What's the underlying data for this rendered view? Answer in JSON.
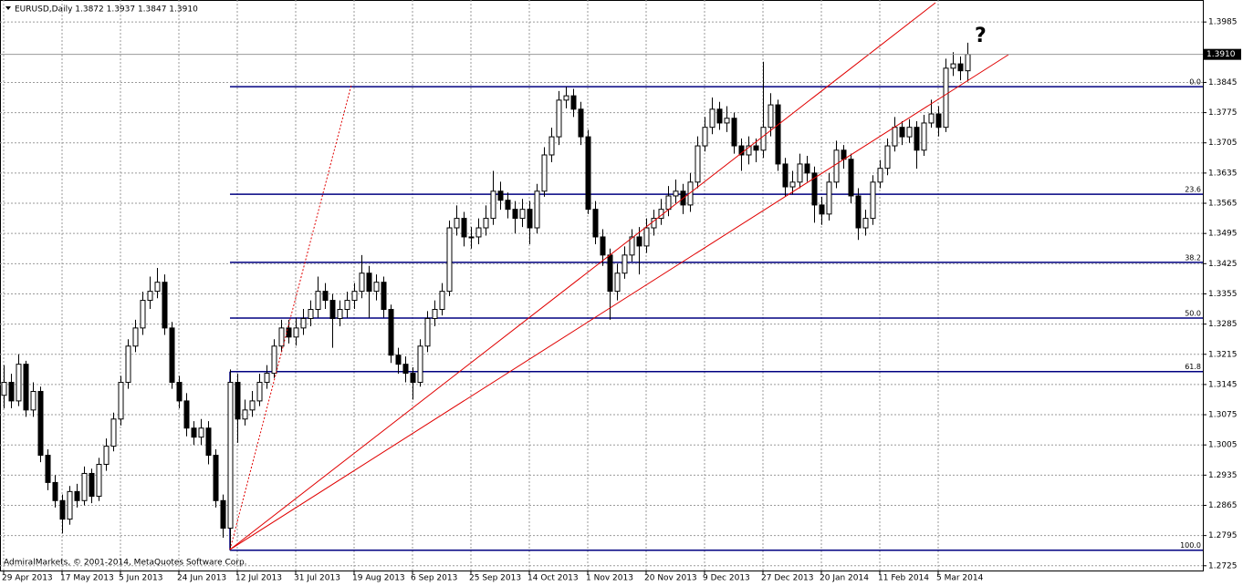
{
  "chart_data": {
    "type": "candlestick",
    "title": "EURUSD,Daily  1.3872 1.3937 1.3847 1.3910",
    "annotation": "?",
    "watermark": "AdmiralMarkets, © 2001-2014, MetaQuotes Software Corp.",
    "ylim": [
      1.2714,
      1.4036
    ],
    "yticks": [
      1.2725,
      1.2795,
      1.2865,
      1.2935,
      1.3005,
      1.3075,
      1.3145,
      1.3215,
      1.3285,
      1.3355,
      1.3425,
      1.3495,
      1.3565,
      1.3635,
      1.3705,
      1.3775,
      1.3845,
      1.3985
    ],
    "grid": true,
    "up_color": "#ffffff",
    "down_color": "#000000",
    "current_price": {
      "value": 1.391,
      "label": "1.3910"
    },
    "fibonacci": {
      "color": "#000080",
      "levels": [
        {
          "value": 0,
          "label": "0.0"
        },
        23.6,
        38.2,
        {
          "value": 50,
          "label": "50.0"
        },
        61.8,
        {
          "value": 100,
          "label": "100.0"
        }
      ],
      "prices": [
        1.3835,
        1.3586,
        1.3428,
        1.3299,
        1.3175,
        1.2761
      ]
    },
    "categories": [
      "29 Apr 2013",
      null,
      null,
      null,
      null,
      null,
      null,
      null,
      "17 May 2013",
      null,
      null,
      null,
      null,
      null,
      null,
      null,
      "5 Jun 2013",
      null,
      null,
      null,
      null,
      null,
      null,
      null,
      "24 Jun 2013",
      null,
      null,
      null,
      null,
      null,
      null,
      null,
      "12 Jul 2013",
      null,
      null,
      null,
      null,
      null,
      null,
      null,
      "31 Jul 2013",
      null,
      null,
      null,
      null,
      null,
      null,
      null,
      "19 Aug 2013",
      null,
      null,
      null,
      null,
      null,
      null,
      null,
      "6 Sep 2013",
      null,
      null,
      null,
      null,
      null,
      null,
      null,
      "25 Sep 2013",
      null,
      null,
      null,
      null,
      null,
      null,
      null,
      "14 Oct 2013",
      null,
      null,
      null,
      null,
      null,
      null,
      null,
      "1 Nov 2013",
      null,
      null,
      null,
      null,
      null,
      null,
      null,
      "20 Nov 2013",
      null,
      null,
      null,
      null,
      null,
      null,
      null,
      "9 Dec 2013",
      null,
      null,
      null,
      null,
      null,
      null,
      null,
      "27 Dec 2013",
      null,
      null,
      null,
      null,
      null,
      null,
      null,
      "20 Jan 2014",
      null,
      null,
      null,
      null,
      null,
      null,
      null,
      "11 Feb 2014",
      null,
      null,
      null,
      null,
      null,
      null,
      null,
      "5 Mar 2014",
      null,
      null,
      null,
      null
    ],
    "open": [
      1.312,
      1.315,
      1.3107,
      1.3192,
      1.3086,
      1.3129,
      1.2981,
      1.2918,
      1.2876,
      1.2833,
      1.2897,
      1.2876,
      1.2939,
      1.2886,
      1.296,
      1.3002,
      1.3065,
      1.315,
      1.3234,
      1.3276,
      1.334,
      1.3361,
      1.3382,
      1.3276,
      1.315,
      1.3107,
      1.3044,
      1.3023,
      1.3044,
      1.2981,
      1.2876,
      1.2812,
      1.315,
      1.3065,
      1.3086,
      1.3107,
      1.315,
      1.3171,
      1.3234,
      1.3276,
      1.3255,
      1.3276,
      1.3298,
      1.3319,
      1.3361,
      1.334,
      1.3298,
      1.3319,
      1.334,
      1.3361,
      1.3403,
      1.3361,
      1.3382,
      1.3319,
      1.3213,
      1.3192,
      1.3171,
      1.315,
      1.3234,
      1.3298,
      1.3319,
      1.3361,
      1.3508,
      1.353,
      1.3487,
      1.3487,
      1.3508,
      1.353,
      1.3593,
      1.3572,
      1.3551,
      1.353,
      1.3551,
      1.3508,
      1.3593,
      1.3677,
      1.3719,
      1.3804,
      1.3814,
      1.3783,
      1.3719,
      1.3551,
      1.3487,
      1.3445,
      1.3361,
      1.3403,
      1.3445,
      1.3487,
      1.3466,
      1.3508,
      1.353,
      1.3551,
      1.3582,
      1.3593,
      1.3561,
      1.3614,
      1.3698,
      1.3741,
      1.3783,
      1.3751,
      1.3762,
      1.3698,
      1.3677,
      1.3698,
      1.3688,
      1.3741,
      1.3793,
      1.3656,
      1.3603,
      1.3614,
      1.3656,
      1.3635,
      1.3561,
      1.354,
      1.3614,
      1.3688,
      1.3667,
      1.3582,
      1.3508,
      1.353,
      1.3614,
      1.3646,
      1.3698,
      1.3741,
      1.3719,
      1.3741,
      1.3688,
      1.3751,
      1.3772,
      1.3741,
      1.3878,
      1.3888,
      1.3872
    ],
    "high": [
      1.319,
      1.317,
      1.3215,
      1.32,
      1.315,
      1.314,
      1.2995,
      1.2935,
      1.289,
      1.291,
      1.2915,
      1.2955,
      1.295,
      1.2975,
      1.302,
      1.308,
      1.3165,
      1.325,
      1.3295,
      1.336,
      1.3395,
      1.3415,
      1.34,
      1.329,
      1.3165,
      1.3125,
      1.306,
      1.3065,
      1.306,
      1.2995,
      1.289,
      1.318,
      1.317,
      1.311,
      1.313,
      1.317,
      1.319,
      1.325,
      1.3295,
      1.3295,
      1.33,
      1.332,
      1.334,
      1.3395,
      1.338,
      1.3355,
      1.334,
      1.336,
      1.338,
      1.3445,
      1.342,
      1.34,
      1.3395,
      1.333,
      1.323,
      1.321,
      1.3185,
      1.325,
      1.3315,
      1.334,
      1.338,
      1.3525,
      1.356,
      1.3545,
      1.351,
      1.353,
      1.356,
      1.364,
      1.3615,
      1.359,
      1.357,
      1.3575,
      1.357,
      1.361,
      1.3695,
      1.374,
      1.3825,
      1.3835,
      1.383,
      1.38,
      1.3735,
      1.357,
      1.3505,
      1.346,
      1.3425,
      1.3465,
      1.3505,
      1.351,
      1.353,
      1.355,
      1.3575,
      1.3605,
      1.362,
      1.361,
      1.3635,
      1.372,
      1.3765,
      1.381,
      1.38,
      1.379,
      1.3775,
      1.3715,
      1.372,
      1.3715,
      1.3893,
      1.382,
      1.3805,
      1.367,
      1.364,
      1.368,
      1.3675,
      1.365,
      1.358,
      1.3635,
      1.371,
      1.37,
      1.368,
      1.36,
      1.355,
      1.363,
      1.3665,
      1.3715,
      1.3765,
      1.3755,
      1.376,
      1.3755,
      1.377,
      1.3805,
      1.379,
      1.39,
      1.3915,
      1.3905,
      1.3937
    ],
    "low": [
      1.309,
      1.309,
      1.3095,
      1.307,
      1.307,
      1.2965,
      1.29,
      1.286,
      1.28,
      1.282,
      1.286,
      1.2865,
      1.287,
      1.2875,
      1.2945,
      1.299,
      1.305,
      1.3135,
      1.322,
      1.326,
      1.332,
      1.3345,
      1.326,
      1.3135,
      1.309,
      1.3025,
      1.3005,
      1.3005,
      1.296,
      1.286,
      1.279,
      1.2761,
      1.301,
      1.305,
      1.307,
      1.3095,
      1.3135,
      1.316,
      1.322,
      1.324,
      1.3235,
      1.326,
      1.328,
      1.33,
      1.332,
      1.323,
      1.328,
      1.33,
      1.332,
      1.3345,
      1.33,
      1.334,
      1.33,
      1.3195,
      1.317,
      1.315,
      1.311,
      1.314,
      1.322,
      1.328,
      1.3305,
      1.335,
      1.349,
      1.3465,
      1.346,
      1.347,
      1.349,
      1.3515,
      1.355,
      1.353,
      1.3495,
      1.351,
      1.347,
      1.3495,
      1.358,
      1.366,
      1.37,
      1.3785,
      1.3765,
      1.37,
      1.354,
      1.347,
      1.342,
      1.3295,
      1.334,
      1.339,
      1.343,
      1.34,
      1.345,
      1.349,
      1.3515,
      1.3535,
      1.3565,
      1.354,
      1.3545,
      1.36,
      1.3685,
      1.3725,
      1.3735,
      1.373,
      1.368,
      1.364,
      1.3655,
      1.366,
      1.367,
      1.372,
      1.364,
      1.358,
      1.3585,
      1.36,
      1.3615,
      1.352,
      1.3515,
      1.3525,
      1.36,
      1.3645,
      1.3565,
      1.348,
      1.349,
      1.3515,
      1.36,
      1.363,
      1.3685,
      1.37,
      1.3705,
      1.3645,
      1.3675,
      1.374,
      1.372,
      1.373,
      1.386,
      1.385,
      1.3847
    ],
    "close": [
      1.315,
      1.3107,
      1.3192,
      1.3086,
      1.3129,
      1.2981,
      1.2918,
      1.2876,
      1.2833,
      1.2897,
      1.2876,
      1.2939,
      1.2886,
      1.296,
      1.3002,
      1.3065,
      1.315,
      1.3234,
      1.3276,
      1.334,
      1.3361,
      1.3382,
      1.3276,
      1.315,
      1.3107,
      1.3044,
      1.3023,
      1.3044,
      1.2981,
      1.2876,
      1.2812,
      1.315,
      1.3065,
      1.3086,
      1.3107,
      1.315,
      1.3171,
      1.3234,
      1.3276,
      1.3255,
      1.3276,
      1.3298,
      1.3319,
      1.3361,
      1.334,
      1.3298,
      1.3319,
      1.334,
      1.3361,
      1.3403,
      1.3361,
      1.3382,
      1.3319,
      1.3213,
      1.3192,
      1.3171,
      1.315,
      1.3234,
      1.3298,
      1.3319,
      1.3361,
      1.3508,
      1.353,
      1.3487,
      1.3487,
      1.3508,
      1.353,
      1.3593,
      1.3572,
      1.3551,
      1.353,
      1.3551,
      1.3508,
      1.3593,
      1.3677,
      1.3719,
      1.3804,
      1.3814,
      1.3783,
      1.3719,
      1.3551,
      1.3487,
      1.3445,
      1.3361,
      1.3403,
      1.3445,
      1.3487,
      1.3466,
      1.3508,
      1.353,
      1.3551,
      1.3582,
      1.3593,
      1.3561,
      1.3614,
      1.3698,
      1.3741,
      1.3783,
      1.3751,
      1.3762,
      1.3698,
      1.3677,
      1.3698,
      1.3688,
      1.3741,
      1.3793,
      1.3656,
      1.3603,
      1.3614,
      1.3656,
      1.3635,
      1.3561,
      1.354,
      1.3614,
      1.3688,
      1.3667,
      1.3582,
      1.3508,
      1.353,
      1.3614,
      1.3646,
      1.3698,
      1.3741,
      1.3719,
      1.3741,
      1.3688,
      1.3751,
      1.3772,
      1.3741,
      1.3878,
      1.3888,
      1.3872,
      1.391
    ]
  }
}
